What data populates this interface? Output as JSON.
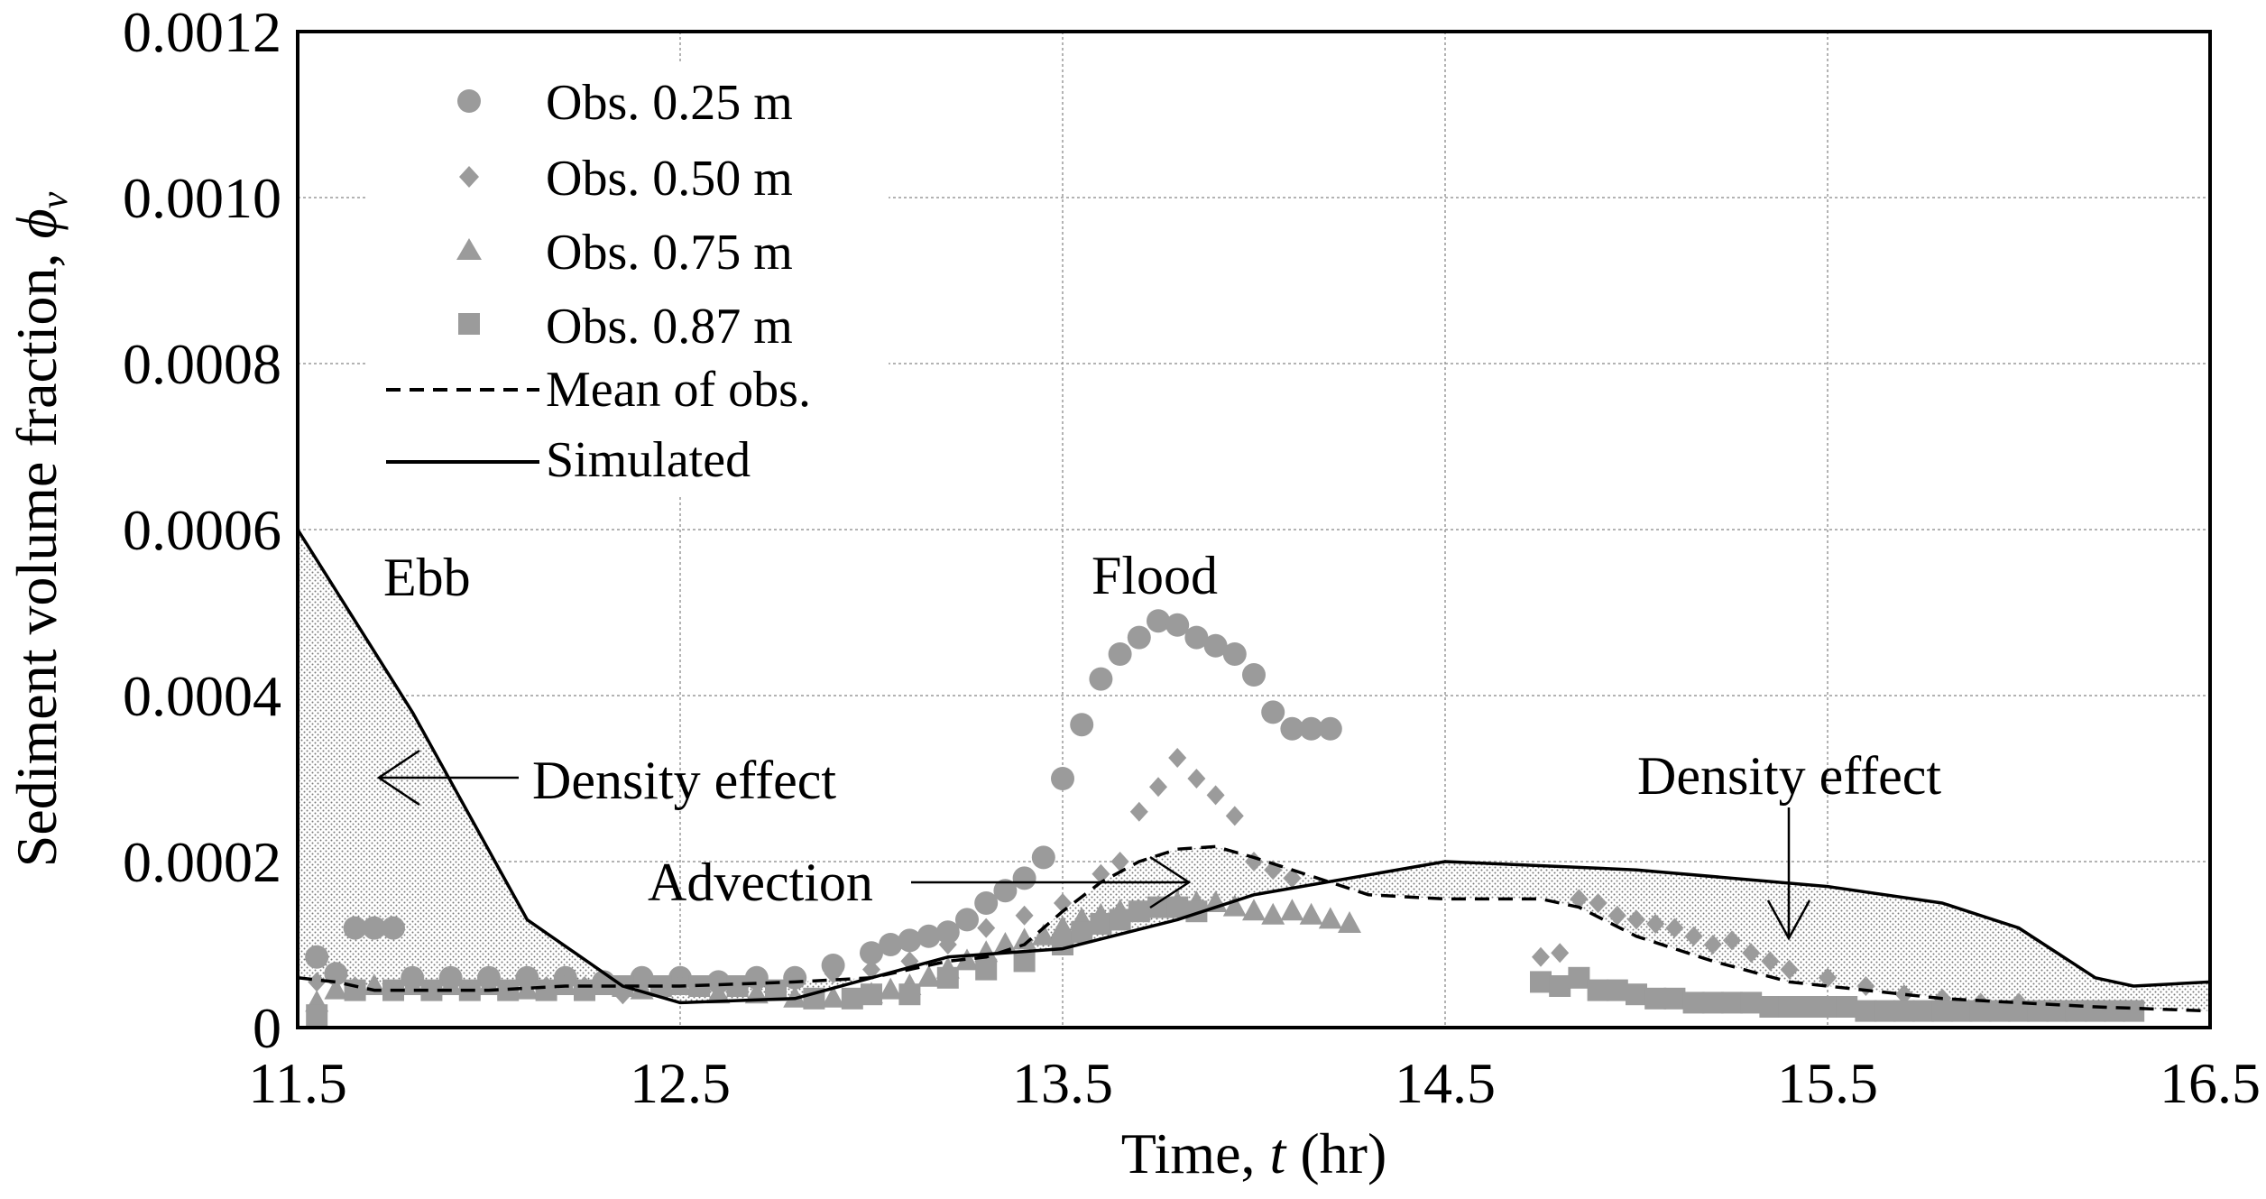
{
  "chart_data": {
    "type": "scatter",
    "title": "",
    "xlabel_prefix": "Time, ",
    "xlabel_var": "t",
    "xlabel_suffix": " (hr)",
    "ylabel_prefix": "Sediment volume fraction, ",
    "ylabel_var": "ϕ",
    "ylabel_sub": "v",
    "xlim": [
      11.5,
      16.5
    ],
    "ylim": [
      0,
      0.0012
    ],
    "xticks": [
      11.5,
      12.5,
      13.5,
      14.5,
      15.5,
      16.5
    ],
    "xtick_labels": [
      "11.5",
      "12.5",
      "13.5",
      "14.5",
      "15.5",
      "16.5"
    ],
    "yticks": [
      0,
      0.0002,
      0.0004,
      0.0006,
      0.0008,
      0.001,
      0.0012
    ],
    "ytick_labels": [
      "0",
      "0.0002",
      "0.0004",
      "0.0006",
      "0.0008",
      "0.0010",
      "0.0012"
    ],
    "grid": true,
    "legend_position": "top-left",
    "series": [
      {
        "name": "Obs. 0.25 m",
        "kind": "markers",
        "marker": "circle",
        "color": "#9b9b9b",
        "x": [
          11.55,
          11.6,
          11.65,
          11.7,
          11.75,
          11.8,
          11.9,
          12.0,
          12.1,
          12.2,
          12.3,
          12.4,
          12.5,
          12.6,
          12.7,
          12.8,
          12.9,
          13.0,
          13.05,
          13.1,
          13.15,
          13.2,
          13.25,
          13.3,
          13.35,
          13.4,
          13.45,
          13.5,
          13.55,
          13.6,
          13.65,
          13.7,
          13.75,
          13.8,
          13.85,
          13.9,
          13.95,
          14.0,
          14.05,
          14.1,
          14.15,
          14.2
        ],
        "y": [
          8.5e-05,
          6.5e-05,
          0.00012,
          0.00012,
          0.00012,
          6e-05,
          6e-05,
          6e-05,
          6e-05,
          6e-05,
          5.5e-05,
          6e-05,
          6e-05,
          5.5e-05,
          6e-05,
          6e-05,
          7.5e-05,
          9e-05,
          0.0001,
          0.000105,
          0.00011,
          0.000115,
          0.00013,
          0.00015,
          0.000165,
          0.00018,
          0.000205,
          0.0003,
          0.000365,
          0.00042,
          0.00045,
          0.00047,
          0.00049,
          0.000485,
          0.00047,
          0.00046,
          0.00045,
          0.000425,
          0.00038,
          0.00036,
          0.00036,
          0.00036
        ]
      },
      {
        "name": "Obs. 0.50 m",
        "kind": "markers",
        "marker": "diamond",
        "color": "#9b9b9b",
        "x": [
          11.55,
          11.65,
          11.75,
          11.85,
          11.95,
          12.05,
          12.15,
          12.25,
          12.35,
          12.5,
          12.6,
          12.7,
          12.8,
          12.9,
          13.0,
          13.1,
          13.2,
          13.3,
          13.4,
          13.5,
          13.6,
          13.65,
          13.7,
          13.75,
          13.8,
          13.85,
          13.9,
          13.95,
          14.0,
          14.05,
          14.1,
          14.75,
          14.8,
          14.85,
          14.9,
          14.95,
          15.0,
          15.05,
          15.1,
          15.15,
          15.2,
          15.25,
          15.3,
          15.35,
          15.4,
          15.5,
          15.6,
          15.7,
          15.8,
          15.9,
          16.0
        ],
        "y": [
          5.5e-05,
          5e-05,
          4.5e-05,
          4.5e-05,
          4.5e-05,
          4.5e-05,
          5e-05,
          5e-05,
          4e-05,
          5e-05,
          5e-05,
          5.5e-05,
          6e-05,
          6.5e-05,
          7e-05,
          8e-05,
          0.0001,
          0.00012,
          0.000135,
          0.00015,
          0.000185,
          0.0002,
          0.00026,
          0.00029,
          0.000325,
          0.0003,
          0.00028,
          0.000255,
          0.0002,
          0.00019,
          0.00018,
          8.5e-05,
          9e-05,
          0.000155,
          0.00015,
          0.000135,
          0.00013,
          0.000125,
          0.00012,
          0.00011,
          0.0001,
          0.000105,
          9e-05,
          8e-05,
          7e-05,
          6e-05,
          5e-05,
          4e-05,
          3.5e-05,
          3e-05,
          3e-05
        ]
      },
      {
        "name": "Obs. 0.75 m",
        "kind": "markers",
        "marker": "triangle",
        "color": "#9b9b9b",
        "x": [
          11.55,
          11.6,
          11.7,
          11.8,
          11.9,
          12.0,
          12.1,
          12.2,
          12.3,
          12.4,
          12.5,
          12.6,
          12.7,
          12.8,
          12.9,
          13.0,
          13.05,
          13.1,
          13.15,
          13.2,
          13.25,
          13.3,
          13.35,
          13.4,
          13.45,
          13.5,
          13.55,
          13.6,
          13.65,
          13.7,
          13.75,
          13.8,
          13.85,
          13.9,
          13.95,
          14.0,
          14.05,
          14.1,
          14.15,
          14.2,
          14.25
        ],
        "y": [
          3e-05,
          4.5e-05,
          5e-05,
          5e-05,
          5e-05,
          5e-05,
          4.5e-05,
          5e-05,
          5e-05,
          4.5e-05,
          5e-05,
          4e-05,
          4e-05,
          3.5e-05,
          3.5e-05,
          4e-05,
          4.5e-05,
          5e-05,
          6e-05,
          7e-05,
          8e-05,
          9e-05,
          0.0001,
          0.000105,
          0.00011,
          0.00012,
          0.00013,
          0.000135,
          0.00014,
          0.00014,
          0.000145,
          0.00015,
          0.00015,
          0.00015,
          0.000145,
          0.00014,
          0.000135,
          0.00014,
          0.000135,
          0.00013,
          0.000125
        ]
      },
      {
        "name": "Obs. 0.87 m",
        "kind": "markers",
        "marker": "square",
        "color": "#9b9b9b",
        "x": [
          11.55,
          11.65,
          11.75,
          11.85,
          11.95,
          12.05,
          12.15,
          12.25,
          12.35,
          12.45,
          12.55,
          12.65,
          12.75,
          12.85,
          12.95,
          13.0,
          13.1,
          13.2,
          13.3,
          13.4,
          13.5,
          13.55,
          13.6,
          13.65,
          13.7,
          13.75,
          13.8,
          13.85,
          14.75,
          14.8,
          14.85,
          14.9,
          14.95,
          15.0,
          15.05,
          15.1,
          15.15,
          15.2,
          15.25,
          15.3,
          15.35,
          15.4,
          15.45,
          15.5,
          15.55,
          15.6,
          15.65,
          15.7,
          15.75,
          15.8,
          15.85,
          15.9,
          15.95,
          16.0,
          16.05,
          16.1,
          16.15,
          16.2,
          16.25,
          16.3
        ],
        "y": [
          1.5e-05,
          4.5e-05,
          4.5e-05,
          4.5e-05,
          4.5e-05,
          4.5e-05,
          4.5e-05,
          4.5e-05,
          5e-05,
          5e-05,
          5e-05,
          5e-05,
          4.5e-05,
          3.5e-05,
          3.5e-05,
          4e-05,
          4e-05,
          6e-05,
          7e-05,
          8e-05,
          0.0001,
          0.000115,
          0.000125,
          0.00013,
          0.00014,
          0.000145,
          0.000145,
          0.00014,
          5.5e-05,
          5e-05,
          6e-05,
          4.5e-05,
          4.5e-05,
          4e-05,
          3.5e-05,
          3.5e-05,
          3e-05,
          3e-05,
          3e-05,
          3e-05,
          2.5e-05,
          2.5e-05,
          2.5e-05,
          2.5e-05,
          2.5e-05,
          2e-05,
          2e-05,
          2e-05,
          2e-05,
          2e-05,
          2e-05,
          2e-05,
          2e-05,
          2e-05,
          2e-05,
          2e-05,
          2e-05,
          2e-05,
          2e-05,
          2e-05
        ]
      },
      {
        "name": "Mean of obs.",
        "kind": "line",
        "dash": true,
        "color": "#000000",
        "x": [
          11.5,
          11.6,
          11.7,
          11.8,
          12.0,
          12.2,
          12.5,
          12.8,
          13.0,
          13.2,
          13.3,
          13.4,
          13.5,
          13.6,
          13.7,
          13.8,
          13.9,
          14.0,
          14.1,
          14.2,
          14.3,
          14.5,
          14.75,
          14.85,
          15.0,
          15.2,
          15.4,
          15.6,
          15.8,
          16.0,
          16.2,
          16.5
        ],
        "y": [
          6e-05,
          5.5e-05,
          4.5e-05,
          4.5e-05,
          4.5e-05,
          5e-05,
          5e-05,
          5.5e-05,
          6e-05,
          8e-05,
          8.5e-05,
          0.0001,
          0.00014,
          0.000175,
          0.0002,
          0.000215,
          0.000218,
          0.000205,
          0.00019,
          0.000175,
          0.00016,
          0.000155,
          0.000155,
          0.000145,
          0.00011,
          8e-05,
          5.5e-05,
          4.5e-05,
          3.5e-05,
          3e-05,
          2.5e-05,
          2e-05
        ]
      },
      {
        "name": "Simulated",
        "kind": "line",
        "dash": false,
        "color": "#000000",
        "x": [
          11.5,
          11.8,
          12.1,
          12.35,
          12.5,
          12.8,
          13.0,
          13.2,
          13.5,
          13.8,
          14.0,
          14.5,
          15.0,
          15.5,
          15.8,
          16.0,
          16.2,
          16.3,
          16.5
        ],
        "y": [
          0.0006,
          0.00038,
          0.00013,
          5e-05,
          3e-05,
          3.5e-05,
          6e-05,
          8.5e-05,
          9.5e-05,
          0.00013,
          0.00016,
          0.0002,
          0.00019,
          0.00017,
          0.00015,
          0.00012,
          6e-05,
          5e-05,
          5.5e-05
        ]
      }
    ],
    "annotations": {
      "ebb": "Ebb",
      "flood": "Flood",
      "density_effect_left": "Density effect",
      "density_effect_right": "Density effect",
      "advection": "Advection"
    }
  }
}
